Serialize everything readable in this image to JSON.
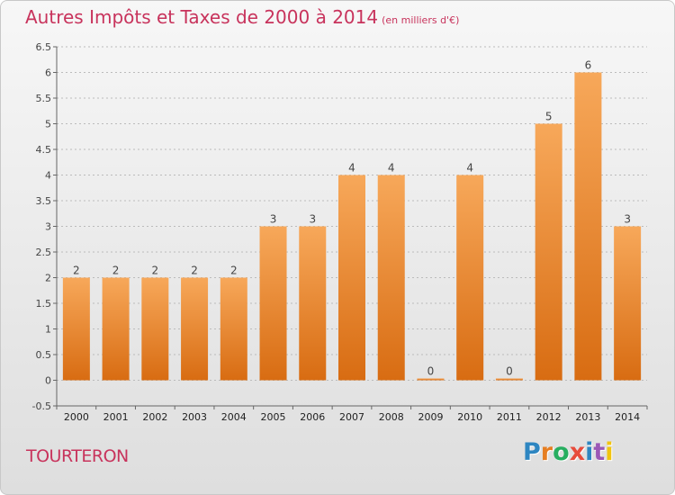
{
  "title": "Autres Impôts et Taxes de 2000 à 2014",
  "unit_note": "(en milliers d'€)",
  "commune": "TOURTERON",
  "logo": {
    "text": "Proxiti",
    "letter_colors": [
      "#2e86c1",
      "#e67e22",
      "#27ae60",
      "#e74c3c",
      "#2e86c1",
      "#9b59b6",
      "#f1c40f"
    ]
  },
  "colors": {
    "title": "#c8335c",
    "bar_top": "#f7a85a",
    "bar_bottom": "#d86c12",
    "grid": "#bbbbbb"
  },
  "chart_data": {
    "type": "bar",
    "categories": [
      "2000",
      "2001",
      "2002",
      "2003",
      "2004",
      "2005",
      "2006",
      "2007",
      "2008",
      "2009",
      "2010",
      "2011",
      "2012",
      "2013",
      "2014"
    ],
    "values": [
      2,
      2,
      2,
      2,
      2,
      3,
      3,
      4,
      4,
      0,
      4,
      0,
      5,
      6,
      3
    ],
    "data_labels": [
      "2",
      "2",
      "2",
      "2",
      "2",
      "3",
      "3",
      "4",
      "4",
      "0",
      "4",
      "0",
      "5",
      "6",
      "3"
    ],
    "ylim": [
      -0.5,
      6.5
    ],
    "yticks": [
      -0.5,
      0,
      0.5,
      1,
      1.5,
      2,
      2.5,
      3,
      3.5,
      4,
      4.5,
      5,
      5.5,
      6,
      6.5
    ],
    "ytick_labels": [
      "-0.5",
      "0",
      "0.5",
      "1",
      "1.5",
      "2",
      "2.5",
      "3",
      "3.5",
      "4",
      "4.5",
      "5",
      "5.5",
      "6",
      "6.5"
    ],
    "grid": true
  }
}
